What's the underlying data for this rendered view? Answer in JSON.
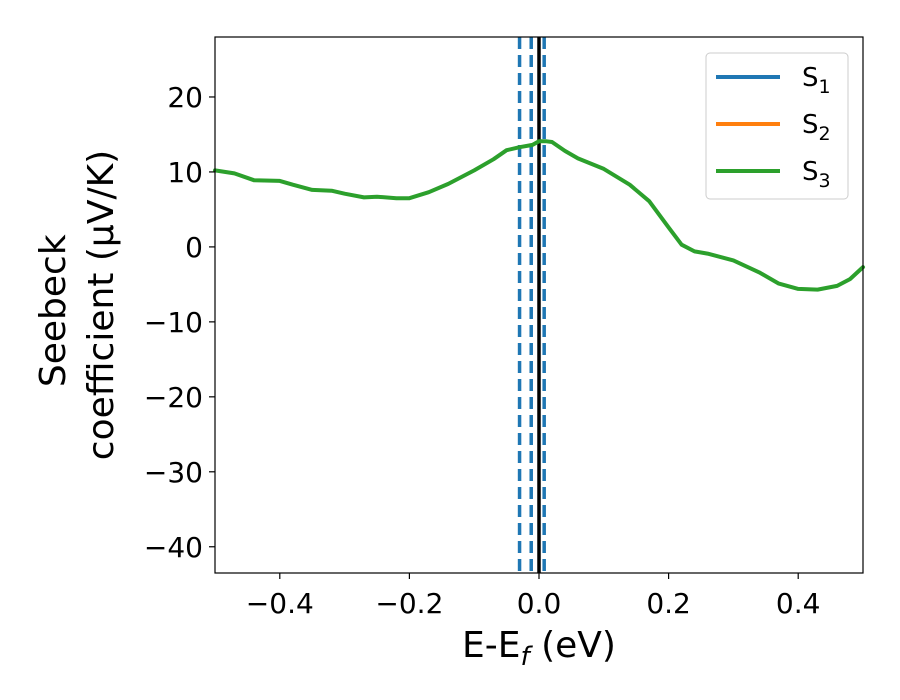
{
  "chart_data": {
    "type": "line",
    "xlabel": {
      "main": "E-E",
      "sub": "f",
      "unit": " (eV)"
    },
    "ylabel": {
      "line1": "Seebeck",
      "line2": "coefficient  (μV/K)"
    },
    "xlim": [
      -0.5,
      0.5
    ],
    "ylim": [
      -43.5,
      28
    ],
    "xticks": [
      -0.4,
      -0.2,
      0.0,
      0.2,
      0.4
    ],
    "xtick_labels": [
      "−0.4",
      "−0.2",
      "0.0",
      "0.2",
      "0.4"
    ],
    "yticks": [
      20,
      10,
      0,
      -10,
      -20,
      -30,
      -40
    ],
    "ytick_labels": [
      "20",
      "10",
      "0",
      "−10",
      "−20",
      "−30",
      "−40"
    ],
    "legend_position": "top-right",
    "grid": false,
    "series": [
      {
        "name": "S",
        "sub": "1",
        "color": "#1f77b4",
        "x": [],
        "y": []
      },
      {
        "name": "S",
        "sub": "2",
        "color": "#ff7f0e",
        "x": [],
        "y": []
      },
      {
        "name": "S",
        "sub": "3",
        "color": "#2ca02c",
        "x": [
          -0.5,
          -0.47,
          -0.44,
          -0.4,
          -0.38,
          -0.35,
          -0.32,
          -0.3,
          -0.27,
          -0.25,
          -0.22,
          -0.2,
          -0.17,
          -0.14,
          -0.1,
          -0.07,
          -0.05,
          -0.03,
          -0.01,
          0.0,
          0.01,
          0.02,
          0.04,
          0.06,
          0.1,
          0.14,
          0.17,
          0.2,
          0.22,
          0.24,
          0.26,
          0.3,
          0.34,
          0.37,
          0.4,
          0.43,
          0.46,
          0.48,
          0.5
        ],
        "y": [
          10.2,
          9.8,
          8.9,
          8.8,
          8.3,
          7.6,
          7.5,
          7.1,
          6.6,
          6.7,
          6.5,
          6.5,
          7.3,
          8.4,
          10.2,
          11.7,
          12.9,
          13.3,
          13.6,
          14.1,
          14.1,
          14.0,
          12.8,
          11.8,
          10.4,
          8.3,
          6.1,
          2.6,
          0.3,
          -0.6,
          -0.9,
          -1.8,
          -3.4,
          -4.9,
          -5.6,
          -5.7,
          -5.2,
          -4.3,
          -2.7
        ]
      }
    ],
    "vlines": [
      {
        "x": -0.03,
        "style": "dashed",
        "color": "#1f77b4"
      },
      {
        "x": -0.012,
        "style": "dashed",
        "color": "#1f77b4"
      },
      {
        "x": 0.008,
        "style": "dashed",
        "color": "#1f77b4"
      },
      {
        "x": 0.0,
        "style": "solid",
        "color": "#000000"
      }
    ]
  }
}
